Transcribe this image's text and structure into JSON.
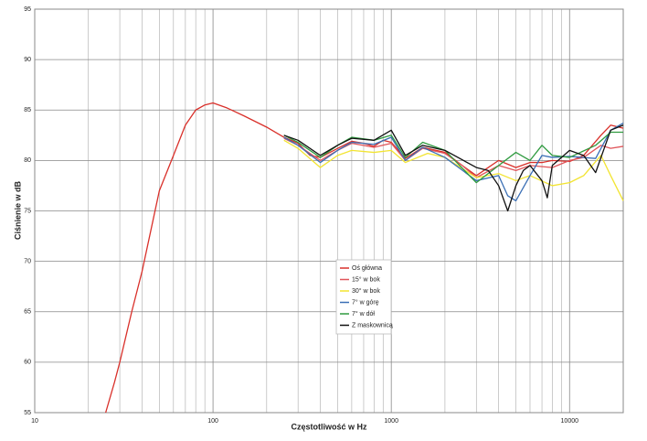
{
  "chart_data": {
    "type": "line",
    "x_label": "Częstotliwość w Hz",
    "y_label": "Ciśnienie w dB",
    "xscale": "log",
    "xlim": [
      10,
      20000
    ],
    "xticks": [
      10,
      100,
      1000,
      10000
    ],
    "xminorticks": [
      20,
      30,
      40,
      50,
      60,
      70,
      80,
      90,
      200,
      300,
      400,
      500,
      600,
      700,
      800,
      900,
      2000,
      3000,
      4000,
      5000,
      6000,
      7000,
      8000,
      9000
    ],
    "ylim": [
      55,
      95
    ],
    "yticks": [
      55,
      60,
      65,
      70,
      75,
      80,
      85,
      90,
      95
    ],
    "grid": true,
    "legend": "center",
    "series": [
      {
        "name": "Oś główna",
        "color": "#d9302a",
        "x": [
          25,
          28,
          30,
          35,
          40,
          50,
          60,
          70,
          80,
          90,
          100,
          120,
          150,
          200,
          250,
          300,
          350,
          400,
          500,
          600,
          700,
          800,
          900,
          1000,
          1200,
          1500,
          2000,
          2500,
          3000,
          3500,
          4000,
          5000,
          6000,
          7000,
          8000,
          10000,
          12000,
          15000,
          17000,
          20000
        ],
        "values": [
          55,
          58,
          60,
          65,
          69,
          77,
          80.5,
          83.5,
          85,
          85.5,
          85.7,
          85.2,
          84.4,
          83.3,
          82.3,
          81.7,
          80.5,
          80.3,
          81.2,
          81.9,
          81.7,
          81.4,
          82,
          81.8,
          80.2,
          81.3,
          80.8,
          79.5,
          78.5,
          79.3,
          80,
          79.3,
          79.8,
          79.8,
          80,
          79.9,
          80.5,
          82.5,
          83.5,
          83.2
        ]
      },
      {
        "name": "15° w bok",
        "color": "#e0555a",
        "x": [
          250,
          300,
          400,
          500,
          600,
          800,
          1000,
          1200,
          1500,
          2000,
          2500,
          3000,
          4000,
          5000,
          6000,
          8000,
          10000,
          12000,
          15000,
          17000,
          20000
        ],
        "values": [
          82.2,
          81.5,
          80,
          81,
          81.7,
          81.3,
          81.7,
          80,
          81.2,
          80.7,
          79.5,
          78.3,
          79.5,
          79,
          79.5,
          79.3,
          80,
          80.3,
          81.5,
          81.2,
          81.4
        ]
      },
      {
        "name": "30° w bok",
        "color": "#f2e431",
        "x": [
          250,
          300,
          400,
          500,
          600,
          800,
          1000,
          1200,
          1600,
          2000,
          3000,
          4000,
          5000,
          6000,
          8000,
          10000,
          12000,
          15000,
          17000,
          20000
        ],
        "values": [
          82,
          81.2,
          79.3,
          80.5,
          81,
          80.8,
          81,
          79.8,
          80.7,
          80.3,
          78.3,
          78.7,
          78,
          78.5,
          77.5,
          77.8,
          78.5,
          80.5,
          78.5,
          76
        ]
      },
      {
        "name": "7° w górę",
        "color": "#3a6fb5",
        "x": [
          250,
          300,
          400,
          500,
          600,
          800,
          1000,
          1200,
          1500,
          2000,
          3000,
          4000,
          4500,
          5000,
          6000,
          7000,
          8000,
          10000,
          14000,
          17000,
          20000
        ],
        "values": [
          82.3,
          81.5,
          79.8,
          81,
          81.8,
          81.6,
          82.3,
          80,
          81.3,
          80.3,
          78,
          78.5,
          76.5,
          76,
          78.5,
          80.5,
          80.3,
          80.4,
          80.2,
          83,
          83.7
        ]
      },
      {
        "name": "7° w dół",
        "color": "#2f9a3f",
        "x": [
          250,
          300,
          400,
          500,
          600,
          800,
          1000,
          1200,
          1500,
          2000,
          3000,
          4000,
          5000,
          6000,
          7000,
          8000,
          10000,
          14000,
          17000,
          20000
        ],
        "values": [
          82.5,
          81.8,
          80.3,
          81.5,
          82.3,
          82,
          82.5,
          80.3,
          81.8,
          81,
          77.8,
          79.5,
          80.8,
          80,
          81.5,
          80.5,
          80.3,
          81.5,
          82.8,
          82.8
        ]
      },
      {
        "name": "Z maskownicą",
        "color": "#111111",
        "x": [
          250,
          300,
          400,
          500,
          600,
          800,
          1000,
          1200,
          1500,
          2000,
          3000,
          3500,
          4000,
          4500,
          5000,
          5500,
          6000,
          7000,
          7500,
          8000,
          10000,
          12000,
          14000,
          17000,
          20000
        ],
        "values": [
          82.5,
          82,
          80.5,
          81.5,
          82.2,
          82,
          83,
          80.5,
          81.5,
          81,
          79.3,
          79,
          77.5,
          75,
          77.5,
          79,
          79.5,
          78,
          76.3,
          79.5,
          81,
          80.5,
          78.8,
          83,
          83.5
        ]
      }
    ]
  }
}
